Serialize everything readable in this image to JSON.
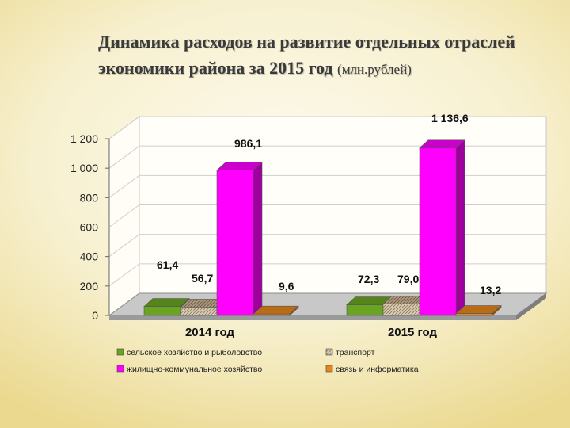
{
  "chart_data": {
    "type": "bar",
    "title_line1": "Динамика расходов на развитие отдельных отраслей",
    "title_line2": "экономики района за 2015 год",
    "title_unit": "(млн.рублей)",
    "categories": [
      "2014 год",
      "2015 год"
    ],
    "ylim": [
      0,
      1200
    ],
    "yticks": [
      0,
      200,
      400,
      600,
      800,
      1000,
      1200
    ],
    "ytick_labels": [
      "0",
      "200",
      "400",
      "600",
      "800",
      "1 000",
      "1 200"
    ],
    "grid": true,
    "legend_position": "bottom",
    "series": [
      {
        "name": "сельское хозяйство и рыболовство",
        "values": [
          61.4,
          72.3
        ],
        "labels": [
          "61,4",
          "72,3"
        ],
        "color": "#6aa521"
      },
      {
        "name": "транспорт",
        "values": [
          56.7,
          79.0
        ],
        "labels": [
          "56,7",
          "79,0"
        ],
        "color": "#c9b79b"
      },
      {
        "name": "жилищно-коммунальное хозяйство",
        "values": [
          986.1,
          1136.6
        ],
        "labels": [
          "986,1",
          "1 136,6"
        ],
        "color": "#ff00ff"
      },
      {
        "name": "связь и информатика",
        "values": [
          9.6,
          13.2
        ],
        "labels": [
          "9,6",
          "13,2"
        ],
        "color": "#e8861c"
      }
    ]
  }
}
